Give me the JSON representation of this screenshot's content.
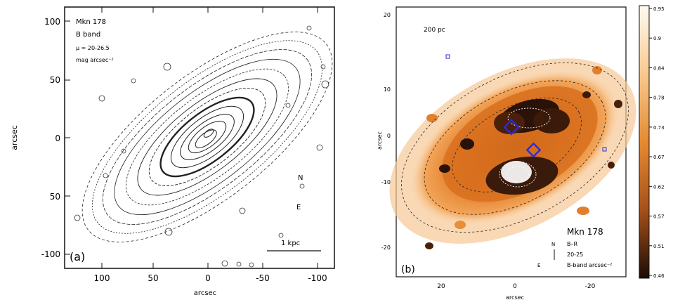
{
  "panel_a": {
    "info_lines": [
      "Mkn 178",
      "B band",
      "μ = 20-26.5",
      "mag arcsec⁻²"
    ],
    "panel_label": "(a)",
    "scale_bar_label": "1 kpc",
    "compass": {
      "north": "N",
      "east": "E"
    },
    "ylabel": "arcsec",
    "xlabel": "arcsec",
    "yticks": [
      "100",
      "50",
      "0",
      "50",
      "-100"
    ],
    "xticks": [
      "100",
      "50",
      "0",
      "-50",
      "-100"
    ]
  },
  "panel_b": {
    "scale_label": "200 pc",
    "info_lines": [
      "Mkn 178",
      "B–R",
      "20-25",
      "B-band arcsec⁻²"
    ],
    "panel_label": "(b)",
    "ylabel": "arcsec",
    "xlabel": "arcsec",
    "yticks": [
      "20",
      "10",
      "0",
      "-10",
      "-20"
    ],
    "xticks": [
      "20",
      "0",
      "-20"
    ],
    "compass": {
      "north": "N",
      "east": "E"
    },
    "colorbar_ticks": [
      "0.95",
      "0.9",
      "0.84",
      "0.78",
      "0.73",
      "0.67",
      "0.62",
      "0.57",
      "0.51",
      "0.46"
    ],
    "colors": {
      "low": "#1a0d06",
      "mid": "#d9731f",
      "high": "#fff7ea",
      "marker": "#2b2bd6"
    }
  }
}
